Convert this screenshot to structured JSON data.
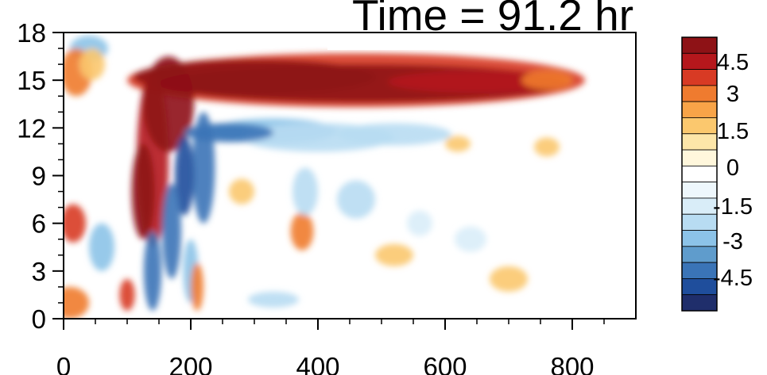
{
  "chart_data": {
    "type": "heatmap",
    "title": "Time = 91.2 hr",
    "xlim": [
      0,
      900
    ],
    "ylim": [
      0,
      18
    ],
    "x_ticks": [
      "0",
      "200",
      "400",
      "600",
      "800"
    ],
    "y_ticks": [
      "0",
      "3",
      "6",
      "9",
      "12",
      "15",
      "18"
    ],
    "colorbar": {
      "levels": [
        -5.25,
        -4.5,
        -3.75,
        -3,
        -2.25,
        -1.5,
        -0.75,
        -0.25,
        0.25,
        0.75,
        1.5,
        2.25,
        3,
        3.75,
        4.5,
        5.25
      ],
      "tick_labels": [
        "4.5",
        "3",
        "1.5",
        "0",
        "-1.5",
        "-3",
        "-4.5"
      ],
      "colors": [
        "#1f2e6b",
        "#1f4e9c",
        "#3a74b7",
        "#5f9ccc",
        "#8cc3e8",
        "#b8dcf2",
        "#d9edf8",
        "#eef7fc",
        "#ffffff",
        "#fff7dc",
        "#fde6a9",
        "#fbc86e",
        "#f8a448",
        "#ef7b2f",
        "#d83a24",
        "#b5171c",
        "#8e1216"
      ]
    },
    "features": [
      {
        "name": "upper positive band",
        "x_range": [
          110,
          800
        ],
        "y_center": 14.8,
        "peak": 6
      },
      {
        "name": "negative band below",
        "x_range": [
          170,
          620
        ],
        "y_center": 11.7,
        "min": -4
      },
      {
        "name": "lower positive/negative noise",
        "x_range": [
          0,
          260
        ],
        "y_range": [
          0,
          17
        ],
        "amplitude": 5
      }
    ]
  }
}
